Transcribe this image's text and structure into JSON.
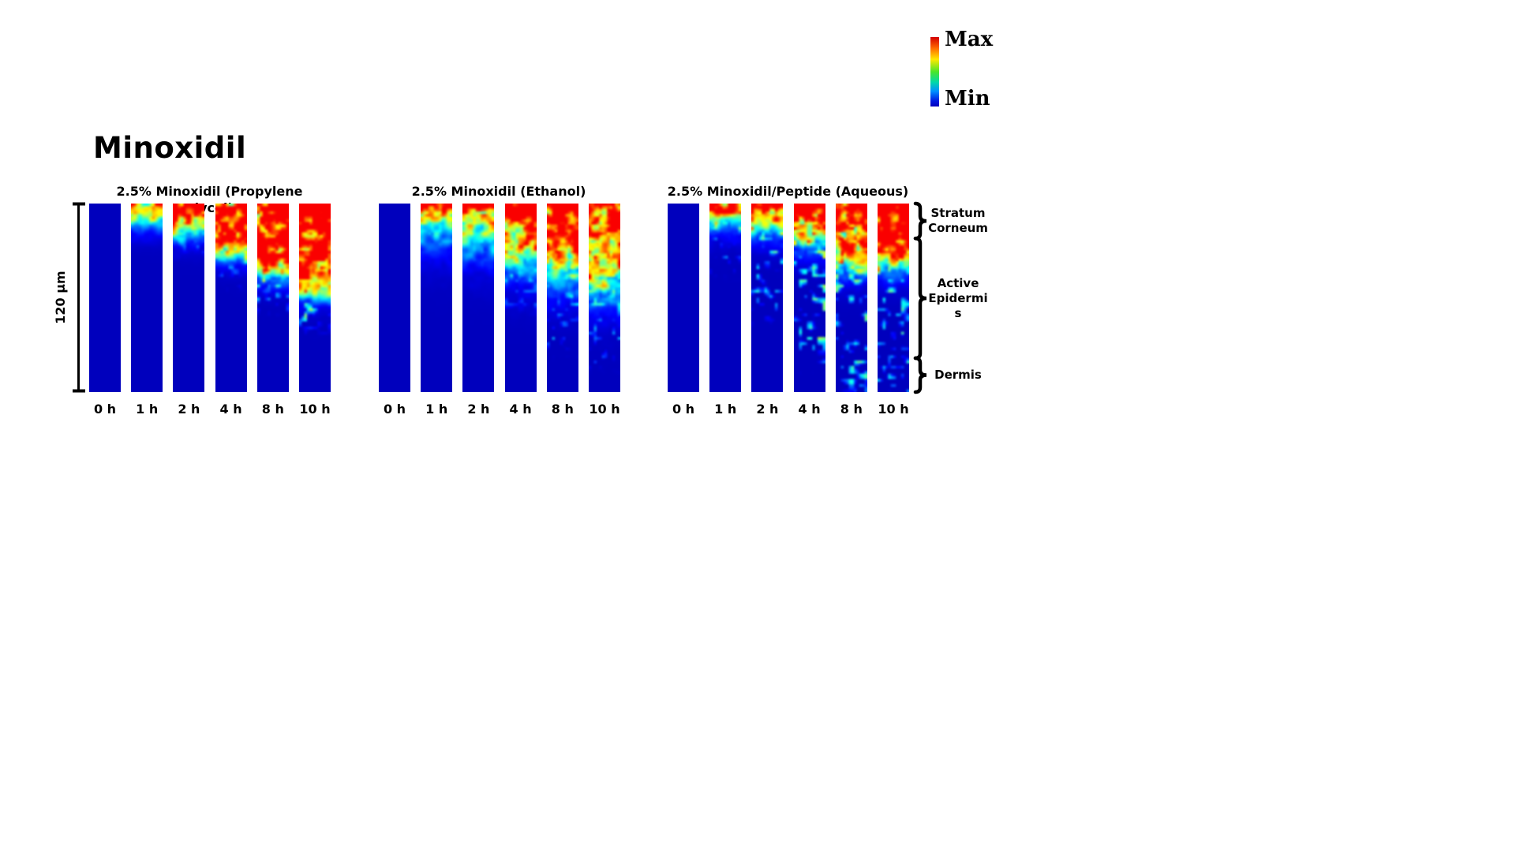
{
  "figure": {
    "title": "Minoxidil",
    "colorbar": {
      "max_label": "Max",
      "min_label": "Min"
    },
    "depth_scale_label": "120 μm"
  },
  "colors": {
    "background": "#ffffff",
    "text": "#000000",
    "heatmap_min_blue": "#0000bd",
    "heatmap_max_red": "#fa0000"
  },
  "chart_data": {
    "type": "heatmap",
    "title": "Minoxidil",
    "colormap": "jet",
    "colorbar": {
      "top_label": "Max",
      "bottom_label": "Min"
    },
    "depth_axis": {
      "label": "120 μm",
      "total_depth_um": 120,
      "surface_at": "top"
    },
    "timepoints": [
      "0 h",
      "1 h",
      "2 h",
      "4 h",
      "8 h",
      "10 h"
    ],
    "skin_layers": [
      {
        "label": "Stratum Corneum",
        "display_lines": [
          "Stratum",
          "Corneum"
        ],
        "depth_frac_range": [
          0.0,
          0.185
        ]
      },
      {
        "label": "Active Epidermis",
        "display_lines": [
          "Active",
          "Epidermi",
          "s"
        ],
        "depth_frac_range": [
          0.185,
          0.82
        ]
      },
      {
        "label": "Dermis",
        "display_lines": [
          "Dermis"
        ],
        "depth_frac_range": [
          0.82,
          1.0
        ]
      }
    ],
    "panels": [
      {
        "title": "2.5% Minoxidil (Propylene glycol)",
        "title_lines": [
          "2.5% Minoxidil (Propylene",
          "glycol)"
        ],
        "edge_softness_frac": 0.034,
        "strips": [
          {
            "time": "0 h",
            "penetration_frac": 0.0,
            "intensity": 0.0,
            "surface_hotspot": 0.0,
            "scatter": 0.0,
            "scatter_depth_frac": 0.0,
            "seed": 101
          },
          {
            "time": "1 h",
            "penetration_frac": 0.09,
            "intensity": 0.9,
            "surface_hotspot": 0.1,
            "scatter": 0.0,
            "scatter_depth_frac": 0.0,
            "seed": 102
          },
          {
            "time": "2 h",
            "penetration_frac": 0.15,
            "intensity": 1.0,
            "surface_hotspot": 0.3,
            "scatter": 0.25,
            "scatter_depth_frac": 0.2,
            "seed": 103
          },
          {
            "time": "4 h",
            "penetration_frac": 0.26,
            "intensity": 1.0,
            "surface_hotspot": 0.3,
            "scatter": 0.4,
            "scatter_depth_frac": 0.36,
            "seed": 104
          },
          {
            "time": "8 h",
            "penetration_frac": 0.37,
            "intensity": 1.1,
            "surface_hotspot": 0.25,
            "scatter": 0.5,
            "scatter_depth_frac": 0.5,
            "seed": 105
          },
          {
            "time": "10 h",
            "penetration_frac": 0.47,
            "intensity": 1.15,
            "surface_hotspot": 0.3,
            "scatter": 0.6,
            "scatter_depth_frac": 0.6,
            "seed": 106
          }
        ]
      },
      {
        "title": "2.5% Minoxidil (Ethanol)",
        "title_lines": [
          "2.5% Minoxidil (Ethanol)"
        ],
        "edge_softness_frac": 0.07,
        "strips": [
          {
            "time": "0 h",
            "penetration_frac": 0.0,
            "intensity": 0.0,
            "surface_hotspot": 0.0,
            "scatter": 0.0,
            "scatter_depth_frac": 0.0,
            "seed": 201
          },
          {
            "time": "1 h",
            "penetration_frac": 0.12,
            "intensity": 1.0,
            "surface_hotspot": 0.45,
            "scatter": 0.0,
            "scatter_depth_frac": 0.0,
            "seed": 202
          },
          {
            "time": "2 h",
            "penetration_frac": 0.18,
            "intensity": 1.0,
            "surface_hotspot": 0.5,
            "scatter": 0.0,
            "scatter_depth_frac": 0.0,
            "seed": 203
          },
          {
            "time": "4 h",
            "penetration_frac": 0.28,
            "intensity": 1.0,
            "surface_hotspot": 0.65,
            "scatter": 0.3,
            "scatter_depth_frac": 0.5,
            "seed": 204
          },
          {
            "time": "8 h",
            "penetration_frac": 0.36,
            "intensity": 0.95,
            "surface_hotspot": 0.6,
            "scatter": 0.35,
            "scatter_depth_frac": 0.72,
            "seed": 205
          },
          {
            "time": "10 h",
            "penetration_frac": 0.44,
            "intensity": 0.9,
            "surface_hotspot": 0.3,
            "scatter": 0.3,
            "scatter_depth_frac": 0.8,
            "seed": 206
          }
        ]
      },
      {
        "title": "2.5% Minoxidil/Peptide (Aqueous)",
        "title_lines": [
          "2.5% Minoxidil/Peptide (Aqueous)"
        ],
        "edge_softness_frac": 0.042,
        "strips": [
          {
            "time": "0 h",
            "penetration_frac": 0.0,
            "intensity": 0.0,
            "surface_hotspot": 0.0,
            "scatter": 0.0,
            "scatter_depth_frac": 0.0,
            "seed": 301
          },
          {
            "time": "1 h",
            "penetration_frac": 0.08,
            "intensity": 0.95,
            "surface_hotspot": 0.45,
            "scatter": 0.3,
            "scatter_depth_frac": 0.3,
            "seed": 302
          },
          {
            "time": "2 h",
            "penetration_frac": 0.12,
            "intensity": 0.95,
            "surface_hotspot": 0.3,
            "scatter": 0.5,
            "scatter_depth_frac": 0.55,
            "seed": 303
          },
          {
            "time": "4 h",
            "penetration_frac": 0.2,
            "intensity": 1.0,
            "surface_hotspot": 0.35,
            "scatter": 0.65,
            "scatter_depth_frac": 0.8,
            "seed": 304
          },
          {
            "time": "8 h",
            "penetration_frac": 0.32,
            "intensity": 1.0,
            "surface_hotspot": 0.4,
            "scatter": 0.6,
            "scatter_depth_frac": 0.95,
            "seed": 305
          },
          {
            "time": "10 h",
            "penetration_frac": 0.32,
            "intensity": 1.1,
            "surface_hotspot": 0.55,
            "scatter": 0.6,
            "scatter_depth_frac": 0.95,
            "seed": 306
          }
        ]
      }
    ]
  }
}
